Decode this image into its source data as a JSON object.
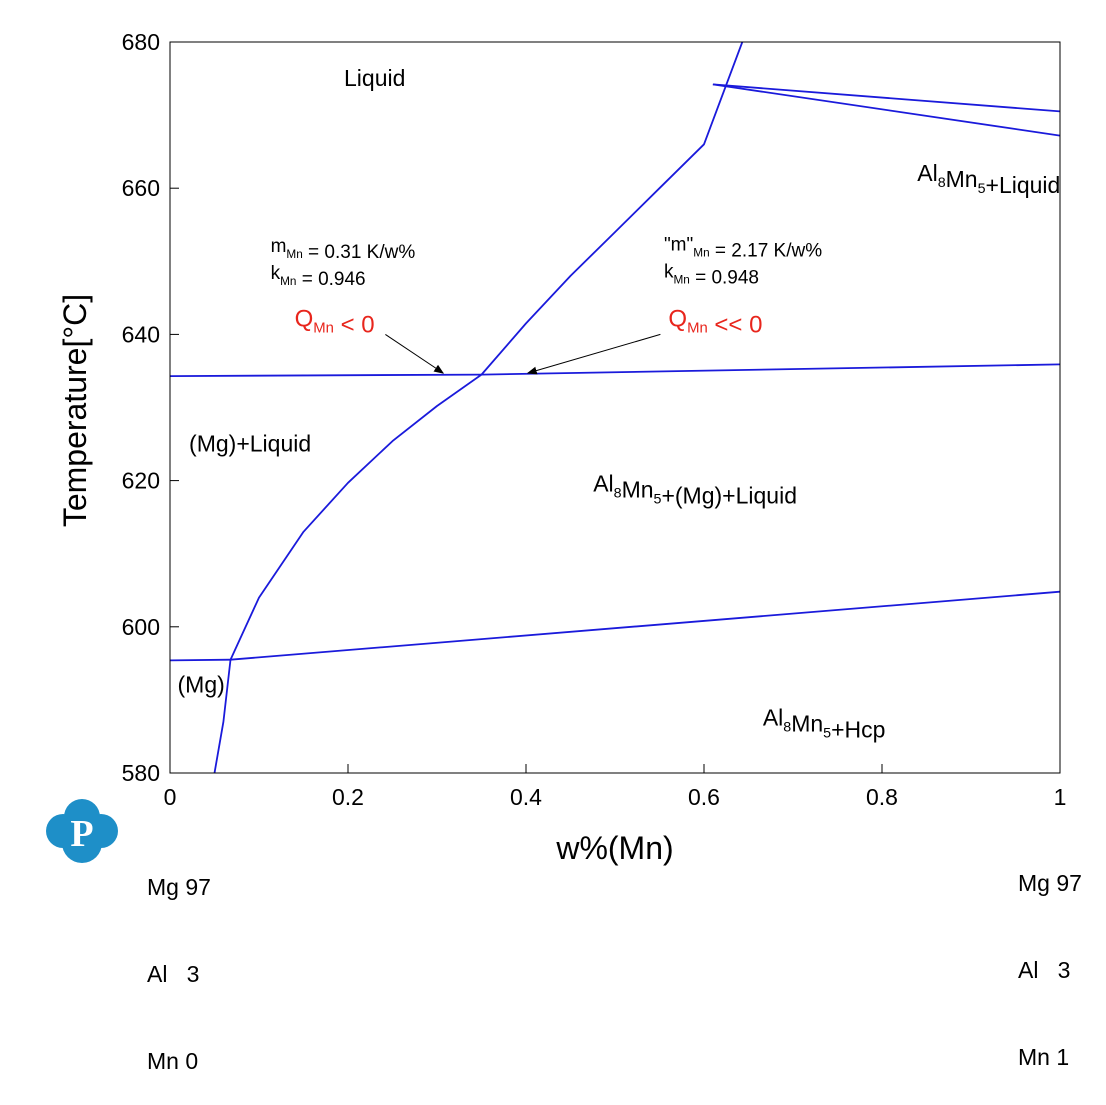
{
  "chart_data": {
    "type": "line",
    "title": "",
    "xlabel": "w%(Mn)",
    "ylabel": "Temperature[°C]",
    "xlim": [
      0,
      1
    ],
    "ylim": [
      580,
      680
    ],
    "x_ticks": [
      "0",
      "0.2",
      "0.4",
      "0.6",
      "0.8",
      "1"
    ],
    "y_ticks": [
      "580",
      "600",
      "620",
      "640",
      "660",
      "680"
    ],
    "grid": false,
    "line_color": "#1a1adb",
    "series": [
      {
        "points": [
          [
            0.05,
            580
          ],
          [
            0.06,
            587
          ],
          [
            0.068,
            595.5
          ],
          [
            0.1,
            604
          ],
          [
            0.15,
            613
          ],
          [
            0.2,
            619.7
          ],
          [
            0.25,
            625.4
          ],
          [
            0.3,
            630.2
          ],
          [
            0.35,
            634.5
          ]
        ]
      },
      {
        "points": [
          [
            0.35,
            634.5
          ],
          [
            0.4,
            641.5
          ],
          [
            0.45,
            648
          ],
          [
            0.5,
            654
          ],
          [
            0.55,
            660
          ],
          [
            0.6,
            666
          ],
          [
            0.643,
            680
          ]
        ]
      },
      {
        "points": [
          [
            0,
            634.3
          ],
          [
            0.35,
            634.5
          ]
        ]
      },
      {
        "points": [
          [
            0.35,
            634.5
          ],
          [
            1.0,
            635.9
          ]
        ]
      },
      {
        "points": [
          [
            0,
            595.4
          ],
          [
            0.068,
            595.5
          ]
        ]
      },
      {
        "points": [
          [
            0.068,
            595.5
          ],
          [
            1.0,
            604.8
          ]
        ]
      },
      {
        "points": [
          [
            0.61,
            674.2
          ],
          [
            1.0,
            670.5
          ]
        ]
      },
      {
        "points": [
          [
            0.61,
            674.2
          ],
          [
            1.0,
            667.2
          ]
        ]
      }
    ],
    "regions": [
      {
        "parts": [
          {
            "t": "Liquid"
          }
        ],
        "x": 0.23,
        "y": 674
      },
      {
        "parts": [
          {
            "t": "Al"
          },
          {
            "t": "8",
            "sub": true
          },
          {
            "t": "Mn"
          },
          {
            "t": "5",
            "sub": true
          },
          {
            "t": "+Liquid"
          }
        ],
        "x": 0.92,
        "y": 661
      },
      {
        "parts": [
          {
            "t": "(Mg)+Liquid"
          }
        ],
        "x": 0.09,
        "y": 624
      },
      {
        "parts": [
          {
            "t": "Al"
          },
          {
            "t": "8",
            "sub": true
          },
          {
            "t": "Mn"
          },
          {
            "t": "5",
            "sub": true
          },
          {
            "t": "+(Mg)+Liquid"
          }
        ],
        "x": 0.59,
        "y": 618.5
      },
      {
        "parts": [
          {
            "t": "(Mg)"
          }
        ],
        "x": 0.035,
        "y": 591
      },
      {
        "parts": [
          {
            "t": "Al"
          },
          {
            "t": "8",
            "sub": true
          },
          {
            "t": "Mn"
          },
          {
            "t": "5",
            "sub": true
          },
          {
            "t": "+Hcp"
          }
        ],
        "x": 0.735,
        "y": 586.5
      }
    ],
    "annotations": [
      {
        "lines": [
          [
            {
              "t": "m"
            },
            {
              "t": "Mn",
              "sub": true
            },
            {
              "t": " = 0.31 K/w%"
            }
          ],
          [
            {
              "t": "k"
            },
            {
              "t": "Mn",
              "sub": true
            },
            {
              "t": " = 0.946"
            }
          ]
        ],
        "x": 0.113,
        "y": 651.3
      },
      {
        "lines": [
          [
            {
              "t": "\"m\""
            },
            {
              "t": "Mn",
              "sub": true
            },
            {
              "t": " = 2.17 K/w%"
            }
          ],
          [
            {
              "t": "k"
            },
            {
              "t": "Mn",
              "sub": true
            },
            {
              "t": " = 0.948"
            }
          ]
        ],
        "x": 0.555,
        "y": 651.5
      },
      {
        "parts": [
          {
            "t": "Q"
          },
          {
            "t": "Mn",
            "sub": true
          },
          {
            "t": " < 0"
          }
        ],
        "x": 0.14,
        "y": 641.1,
        "red": true
      },
      {
        "parts": [
          {
            "t": "Q"
          },
          {
            "t": "Mn",
            "sub": true
          },
          {
            "t": " << 0"
          }
        ],
        "x": 0.56,
        "y": 641.1,
        "red": true
      }
    ],
    "arrows": [
      {
        "from": [
          0.242,
          640.0
        ],
        "to": [
          0.307,
          634.7
        ]
      },
      {
        "from": [
          0.551,
          640.0
        ],
        "to": [
          0.402,
          634.7
        ]
      }
    ]
  },
  "corner_left": [
    "Mg 97",
    "Al   3",
    "Mn 0"
  ],
  "corner_right": [
    "Mg 97",
    "Al   3",
    "Mn 1"
  ],
  "logo": {
    "letter": "P",
    "color": "#1e8fc8"
  }
}
